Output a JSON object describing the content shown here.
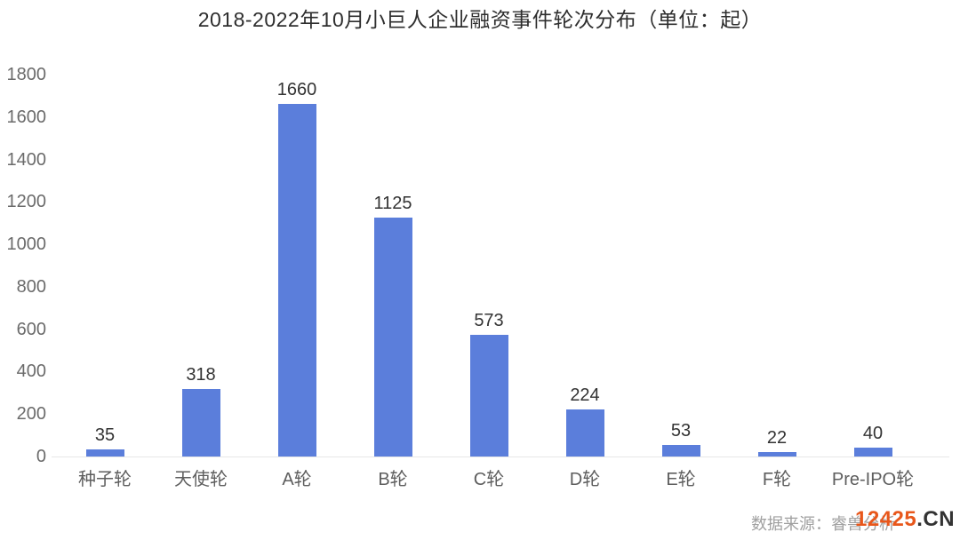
{
  "chart_data": {
    "type": "bar",
    "title": "2018-2022年10月小巨人企业融资事件轮次分布（单位：起）",
    "categories": [
      "种子轮",
      "天使轮",
      "A轮",
      "B轮",
      "C轮",
      "D轮",
      "E轮",
      "F轮",
      "Pre-IPO轮"
    ],
    "values": [
      35,
      318,
      1660,
      1125,
      573,
      224,
      53,
      22,
      40
    ],
    "xlabel": "",
    "ylabel": "",
    "ylim": [
      0,
      1800
    ],
    "yticks": [
      0,
      200,
      400,
      600,
      800,
      1000,
      1200,
      1400,
      1600,
      1800
    ],
    "grid": false,
    "legend": false,
    "value_labels": true,
    "bar_color": "#5b7edb"
  },
  "footer": {
    "source": "数据来源：睿兽分析",
    "watermark_primary": "12425",
    "watermark_suffix": ".CN"
  },
  "colors": {
    "bar": "#5b7edb",
    "title_text": "#2e2e2e",
    "axis_text": "#6b6b6b",
    "value_text": "#333333",
    "source_text": "#a0a0a0",
    "watermark_primary": "#e8571b",
    "watermark_suffix": "#333333",
    "baseline": "#e7e7e7",
    "background": "#ffffff"
  }
}
